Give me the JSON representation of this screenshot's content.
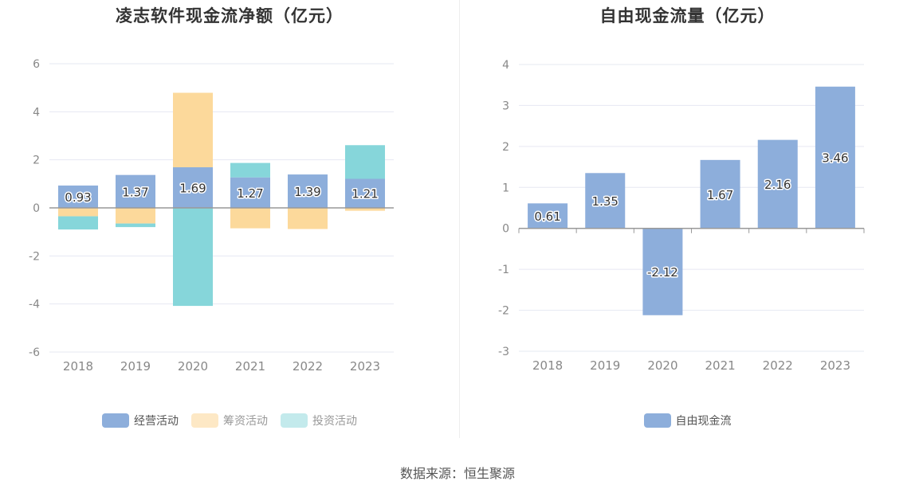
{
  "source_text": "数据来源：恒生聚源",
  "chart_data": [
    {
      "type": "bar",
      "stacked": true,
      "title": "凌志软件现金流净额（亿元）",
      "categories": [
        "2018",
        "2019",
        "2020",
        "2021",
        "2022",
        "2023"
      ],
      "ylim": [
        -6,
        6
      ],
      "yticks": [
        -6,
        -4,
        -2,
        0,
        2,
        4,
        6
      ],
      "grid": true,
      "legend_position": "bottom",
      "series": [
        {
          "name": "经营活动",
          "color": "#8daedb",
          "values": [
            0.93,
            1.37,
            1.69,
            1.27,
            1.39,
            1.21
          ],
          "labels": [
            "0.93",
            "1.37",
            "1.69",
            "1.27",
            "1.39",
            "1.21"
          ]
        },
        {
          "name": "筹资活动",
          "color": "#fcd99b",
          "values": [
            -0.35,
            -0.65,
            3.1,
            -0.85,
            -0.88,
            -0.12
          ]
        },
        {
          "name": "投资活动",
          "color": "#86d6da",
          "values": [
            -0.55,
            -0.15,
            -4.08,
            0.6,
            0.0,
            1.4
          ]
        }
      ]
    },
    {
      "type": "bar",
      "title": "自由现金流量（亿元）",
      "categories": [
        "2018",
        "2019",
        "2020",
        "2021",
        "2022",
        "2023"
      ],
      "ylim": [
        -3,
        4
      ],
      "yticks": [
        -3,
        -2,
        -1,
        0,
        1,
        2,
        3,
        4
      ],
      "grid": true,
      "legend_position": "bottom",
      "series": [
        {
          "name": "自由现金流",
          "color": "#8daedb",
          "values": [
            0.61,
            1.35,
            -2.12,
            1.67,
            2.16,
            3.46
          ],
          "labels": [
            "0.61",
            "1.35",
            "-2.12",
            "1.67",
            "2.16",
            "3.46"
          ]
        }
      ]
    }
  ]
}
